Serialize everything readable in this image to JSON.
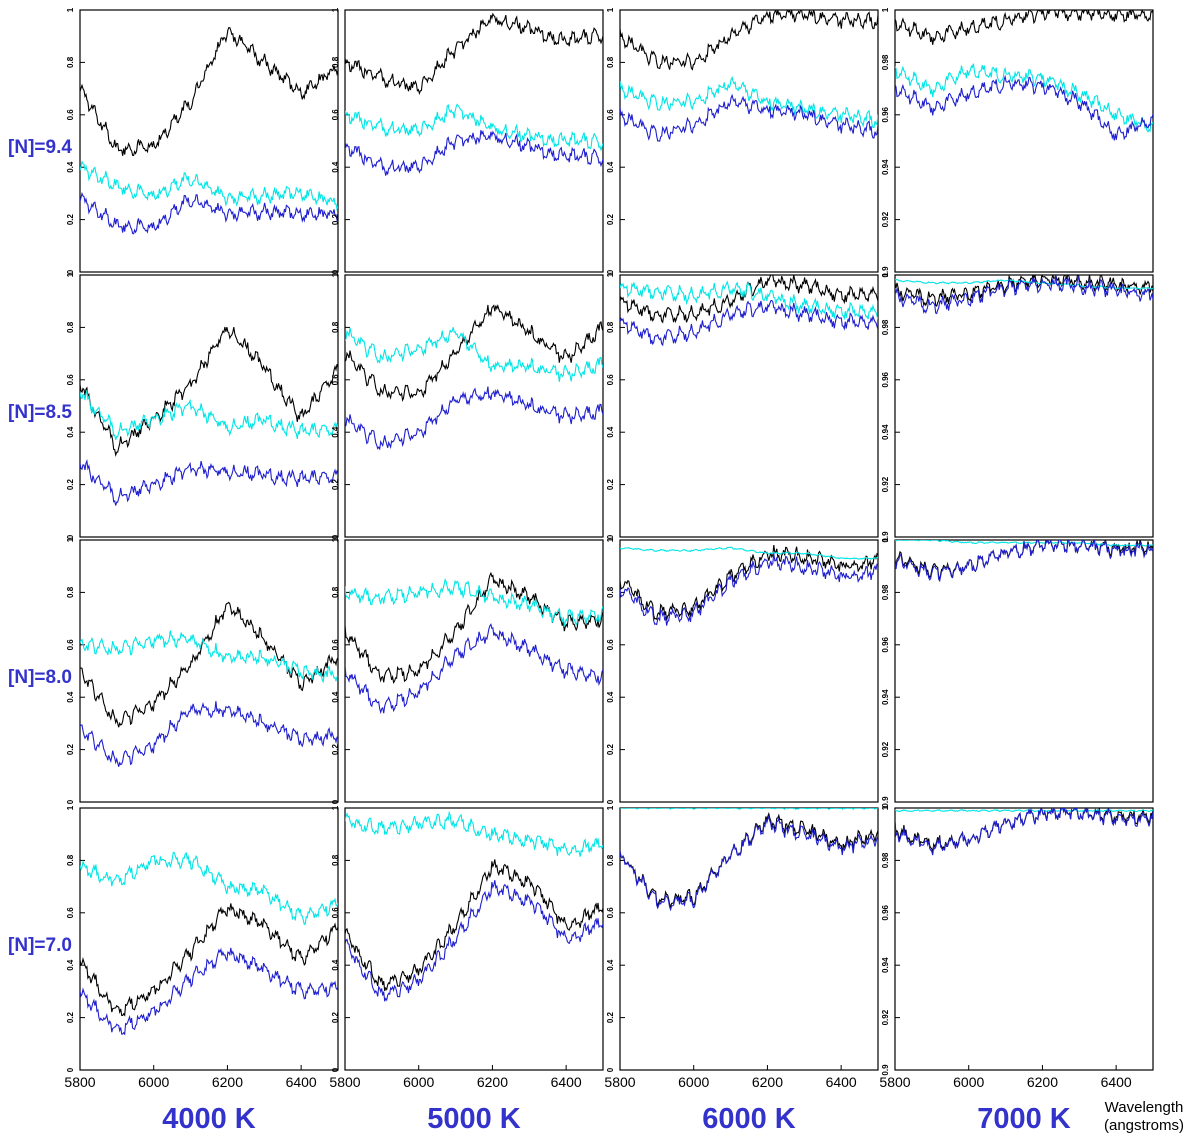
{
  "colors": {
    "label": "#3333cc",
    "series": [
      "#000000",
      "#00e5e5",
      "#1f1fcf"
    ]
  },
  "chart_data": {
    "type": "line",
    "layout": "grid 4x4",
    "xlabel_lines": [
      "Wavelength",
      "(angstroms)"
    ],
    "x_ticks": [
      "5800",
      "6000",
      "6200",
      "6400"
    ],
    "xlim": [
      5800,
      6500
    ],
    "rows": [
      "[N]=9.4",
      "[N]=8.5",
      "[N]=8.0",
      "[N]=7.0"
    ],
    "columns": [
      "4000 K",
      "5000 K",
      "6000 K",
      "7000 K"
    ],
    "y_ticks": {
      "4000 K": [
        "0",
        "0.2",
        "0.4",
        "0.6",
        "0.8",
        "1"
      ],
      "5000 K": [
        "0",
        "0.2",
        "0.4",
        "0.6",
        "0.8",
        "1"
      ],
      "6000 K": [
        "0",
        "0.2",
        "0.4",
        "0.6",
        "0.8",
        "1"
      ],
      "7000 K": [
        "0.9",
        "0.92",
        "0.94",
        "0.96",
        "0.98",
        "1"
      ]
    },
    "ylim": {
      "4000 K": [
        0,
        1
      ],
      "5000 K": [
        0,
        1
      ],
      "6000 K": [
        0,
        1
      ],
      "7000 K": [
        0.9,
        1
      ]
    },
    "x": [
      5800,
      5900,
      6000,
      6100,
      6200,
      6300,
      6400,
      6500
    ],
    "panels": [
      {
        "row": "[N]=9.4",
        "col": "4000 K",
        "series": [
          {
            "values": [
              0.7,
              0.47,
              0.48,
              0.65,
              0.92,
              0.8,
              0.68,
              0.78
            ]
          },
          {
            "values": [
              0.4,
              0.33,
              0.29,
              0.36,
              0.28,
              0.29,
              0.3,
              0.26
            ]
          },
          {
            "values": [
              0.28,
              0.18,
              0.17,
              0.28,
              0.22,
              0.23,
              0.22,
              0.22
            ]
          }
        ]
      },
      {
        "row": "[N]=9.4",
        "col": "5000 K",
        "series": [
          {
            "values": [
              0.8,
              0.74,
              0.7,
              0.85,
              0.97,
              0.93,
              0.88,
              0.91
            ]
          },
          {
            "values": [
              0.6,
              0.55,
              0.54,
              0.62,
              0.55,
              0.52,
              0.5,
              0.5
            ]
          },
          {
            "values": [
              0.48,
              0.4,
              0.4,
              0.5,
              0.52,
              0.48,
              0.44,
              0.44
            ]
          }
        ]
      },
      {
        "row": "[N]=9.4",
        "col": "6000 K",
        "series": [
          {
            "values": [
              0.9,
              0.8,
              0.8,
              0.9,
              0.98,
              0.98,
              0.96,
              0.96
            ]
          },
          {
            "values": [
              0.7,
              0.64,
              0.65,
              0.72,
              0.65,
              0.62,
              0.6,
              0.58
            ]
          },
          {
            "values": [
              0.6,
              0.52,
              0.56,
              0.65,
              0.62,
              0.6,
              0.56,
              0.54
            ]
          }
        ]
      },
      {
        "row": "[N]=9.4",
        "col": "7000 K",
        "series": [
          {
            "values": [
              0.995,
              0.99,
              0.993,
              0.996,
              0.999,
              0.999,
              0.998,
              0.998
            ]
          },
          {
            "values": [
              0.977,
              0.97,
              0.977,
              0.975,
              0.974,
              0.968,
              0.96,
              0.955
            ]
          },
          {
            "values": [
              0.97,
              0.963,
              0.968,
              0.972,
              0.971,
              0.965,
              0.952,
              0.958
            ]
          }
        ]
      },
      {
        "row": "[N]=8.5",
        "col": "4000 K",
        "series": [
          {
            "values": [
              0.58,
              0.34,
              0.45,
              0.58,
              0.8,
              0.65,
              0.45,
              0.65
            ]
          },
          {
            "values": [
              0.55,
              0.4,
              0.45,
              0.5,
              0.42,
              0.45,
              0.4,
              0.42
            ]
          },
          {
            "values": [
              0.28,
              0.15,
              0.2,
              0.26,
              0.25,
              0.24,
              0.22,
              0.24
            ]
          }
        ]
      },
      {
        "row": "[N]=8.5",
        "col": "5000 K",
        "series": [
          {
            "values": [
              0.7,
              0.55,
              0.55,
              0.7,
              0.88,
              0.78,
              0.68,
              0.8
            ]
          },
          {
            "values": [
              0.78,
              0.68,
              0.72,
              0.78,
              0.65,
              0.65,
              0.62,
              0.66
            ]
          },
          {
            "values": [
              0.45,
              0.35,
              0.4,
              0.52,
              0.55,
              0.5,
              0.46,
              0.48
            ]
          }
        ]
      },
      {
        "row": "[N]=8.5",
        "col": "6000 K",
        "series": [
          {
            "values": [
              0.9,
              0.85,
              0.85,
              0.9,
              0.98,
              0.96,
              0.92,
              0.93
            ]
          },
          {
            "values": [
              0.95,
              0.94,
              0.92,
              0.95,
              0.92,
              0.88,
              0.86,
              0.86
            ]
          },
          {
            "values": [
              0.82,
              0.76,
              0.78,
              0.85,
              0.88,
              0.85,
              0.82,
              0.82
            ]
          }
        ]
      },
      {
        "row": "[N]=8.5",
        "col": "7000 K",
        "series": [
          {
            "values": [
              0.994,
              0.991,
              0.993,
              0.996,
              0.999,
              0.998,
              0.996,
              0.996
            ]
          },
          {
            "values": [
              0.998,
              0.997,
              0.997,
              0.998,
              0.997,
              0.996,
              0.995,
              0.995
            ]
          },
          {
            "values": [
              0.992,
              0.988,
              0.991,
              0.995,
              0.997,
              0.996,
              0.994,
              0.993
            ]
          }
        ]
      },
      {
        "row": "[N]=8.0",
        "col": "4000 K",
        "series": [
          {
            "values": [
              0.5,
              0.3,
              0.38,
              0.52,
              0.75,
              0.62,
              0.45,
              0.55
            ]
          },
          {
            "values": [
              0.6,
              0.58,
              0.62,
              0.62,
              0.55,
              0.55,
              0.5,
              0.48
            ]
          },
          {
            "values": [
              0.28,
              0.15,
              0.22,
              0.35,
              0.35,
              0.3,
              0.24,
              0.25
            ]
          }
        ]
      },
      {
        "row": "[N]=8.0",
        "col": "5000 K",
        "series": [
          {
            "values": [
              0.65,
              0.48,
              0.5,
              0.65,
              0.85,
              0.78,
              0.68,
              0.7
            ]
          },
          {
            "values": [
              0.8,
              0.78,
              0.8,
              0.82,
              0.78,
              0.75,
              0.7,
              0.72
            ]
          },
          {
            "values": [
              0.5,
              0.36,
              0.42,
              0.56,
              0.65,
              0.58,
              0.5,
              0.48
            ]
          }
        ]
      },
      {
        "row": "[N]=8.0",
        "col": "6000 K",
        "series": [
          {
            "values": [
              0.85,
              0.72,
              0.74,
              0.86,
              0.95,
              0.94,
              0.9,
              0.92
            ]
          },
          {
            "values": [
              0.97,
              0.96,
              0.96,
              0.97,
              0.95,
              0.95,
              0.93,
              0.93
            ]
          },
          {
            "values": [
              0.82,
              0.7,
              0.72,
              0.84,
              0.92,
              0.9,
              0.86,
              0.88
            ]
          }
        ]
      },
      {
        "row": "[N]=8.0",
        "col": "7000 K",
        "series": [
          {
            "values": [
              0.993,
              0.988,
              0.99,
              0.995,
              0.998,
              0.998,
              0.997,
              0.997
            ]
          },
          {
            "values": [
              1.0,
              1.0,
              0.999,
              0.999,
              0.999,
              0.999,
              0.998,
              0.998
            ]
          },
          {
            "values": [
              0.992,
              0.987,
              0.99,
              0.995,
              0.998,
              0.998,
              0.996,
              0.996
            ]
          }
        ]
      },
      {
        "row": "[N]=7.0",
        "col": "4000 K",
        "series": [
          {
            "values": [
              0.42,
              0.22,
              0.3,
              0.45,
              0.62,
              0.55,
              0.42,
              0.55
            ]
          },
          {
            "values": [
              0.78,
              0.72,
              0.8,
              0.8,
              0.7,
              0.68,
              0.58,
              0.64
            ]
          },
          {
            "values": [
              0.3,
              0.15,
              0.22,
              0.35,
              0.45,
              0.38,
              0.3,
              0.32
            ]
          }
        ]
      },
      {
        "row": "[N]=7.0",
        "col": "5000 K",
        "series": [
          {
            "values": [
              0.52,
              0.32,
              0.38,
              0.55,
              0.78,
              0.72,
              0.55,
              0.62
            ]
          },
          {
            "values": [
              0.95,
              0.92,
              0.94,
              0.95,
              0.9,
              0.88,
              0.84,
              0.86
            ]
          },
          {
            "values": [
              0.48,
              0.28,
              0.34,
              0.5,
              0.7,
              0.65,
              0.5,
              0.56
            ]
          }
        ]
      },
      {
        "row": "[N]=7.0",
        "col": "6000 K",
        "series": [
          {
            "values": [
              0.82,
              0.65,
              0.66,
              0.82,
              0.95,
              0.92,
              0.86,
              0.9
            ]
          },
          {
            "values": [
              1.0,
              1.0,
              1.0,
              1.0,
              1.0,
              0.999,
              0.999,
              0.999
            ]
          },
          {
            "values": [
              0.82,
              0.64,
              0.65,
              0.82,
              0.94,
              0.9,
              0.85,
              0.88
            ]
          }
        ]
      },
      {
        "row": "[N]=7.0",
        "col": "7000 K",
        "series": [
          {
            "values": [
              0.992,
              0.986,
              0.988,
              0.994,
              0.998,
              0.998,
              0.997,
              0.997
            ]
          },
          {
            "values": [
              0.999,
              0.999,
              0.999,
              0.999,
              0.999,
              0.999,
              0.999,
              0.999
            ]
          },
          {
            "values": [
              0.991,
              0.985,
              0.988,
              0.994,
              0.998,
              0.998,
              0.996,
              0.996
            ]
          }
        ]
      }
    ]
  }
}
